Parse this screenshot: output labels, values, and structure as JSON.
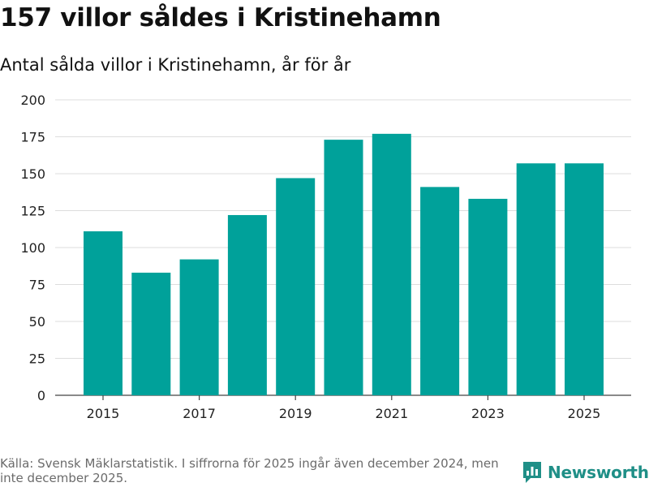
{
  "header": {
    "title": "157 villor såldes i Kristinehamn",
    "subtitle": "Antal sålda villor i Kristinehamn, år för år"
  },
  "chart_data": {
    "type": "bar",
    "title": "157 villor såldes i Kristinehamn",
    "subtitle": "Antal sålda villor i Kristinehamn, år för år",
    "categories": [
      "2015",
      "2016",
      "2017",
      "2018",
      "2019",
      "2020",
      "2021",
      "2022",
      "2023",
      "2024",
      "2025"
    ],
    "values": [
      111,
      83,
      92,
      122,
      147,
      173,
      177,
      141,
      133,
      157,
      157
    ],
    "x_tick_labels": [
      "2015",
      "2017",
      "2019",
      "2021",
      "2023",
      "2025"
    ],
    "y_ticks": [
      0,
      25,
      50,
      75,
      100,
      125,
      150,
      175,
      200
    ],
    "ylim": [
      0,
      200
    ],
    "xlabel": "",
    "ylabel": "",
    "grid": true,
    "bar_color": "#00a19a"
  },
  "footer": {
    "source": "Källa: Svensk Mäklarstatistik. I siffrorna för 2025 ingår även december 2024, men inte december 2025.",
    "brand": "Newsworthy",
    "brand_color": "#1f8f87",
    "brand_icon": "bar-chart-speech-bubble-icon"
  }
}
